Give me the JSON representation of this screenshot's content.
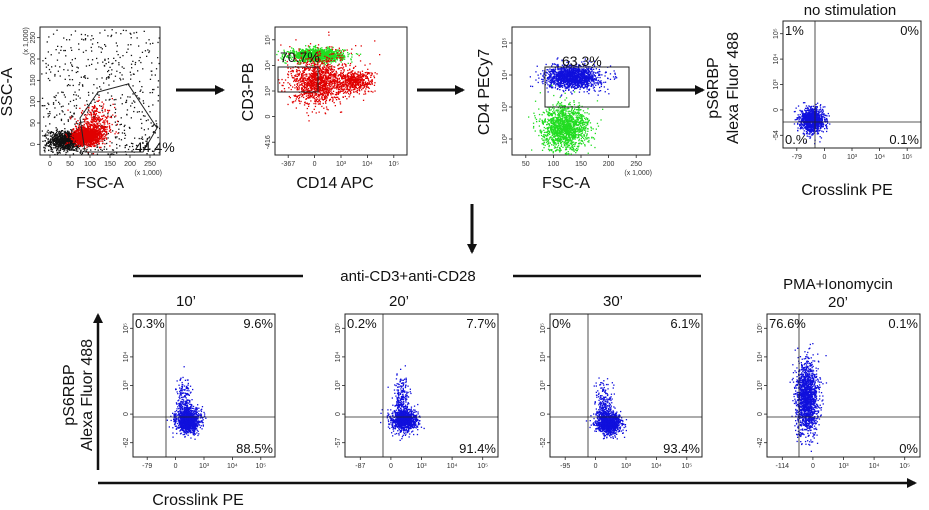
{
  "colors": {
    "black": "#111111",
    "red": "#e00000",
    "green": "#22dd22",
    "blue": "#1010dd",
    "axis": "#222222"
  },
  "chart_data": [
    {
      "id": "p1",
      "type": "scatter",
      "title": "",
      "xlabel": "FSC-A",
      "ylabel": "SSC-A",
      "xlim": [
        0,
        262
      ],
      "ylim": [
        0,
        262
      ],
      "x_ticks": [
        "0",
        "50",
        "100",
        "150",
        "200",
        "250"
      ],
      "x_scale_note": "(x 1,000)",
      "y_ticks": [
        "0",
        "50",
        "100",
        "150",
        "200",
        "250"
      ],
      "y_scale_note": "(x 1,000)",
      "gates": [
        {
          "label": "44.4%",
          "color": "black"
        }
      ],
      "populations": [
        {
          "name": "debris",
          "color": "black",
          "center": [
            55,
            30
          ],
          "spread": [
            18,
            10
          ],
          "n": 900
        },
        {
          "name": "background",
          "color": "black",
          "center": [
            130,
            130
          ],
          "spread": [
            120,
            120
          ],
          "n": 650,
          "uniform": true
        },
        {
          "name": "lymphocytes",
          "color": "red",
          "center": [
            100,
            40
          ],
          "spread": [
            14,
            8
          ],
          "n": 1400
        },
        {
          "name": "large cells",
          "color": "red",
          "center": [
            120,
            60
          ],
          "spread": [
            20,
            20
          ],
          "n": 400
        }
      ]
    },
    {
      "id": "p2",
      "type": "scatter",
      "xlabel": "CD14 APC",
      "ylabel": "CD3-PB",
      "xlim": [
        -1,
        5
      ],
      "ylim": [
        -1,
        5
      ],
      "x_ticks": [
        "-367",
        "0",
        "10³",
        "10⁴",
        "10⁵"
      ],
      "y_ticks": [
        "-416",
        "0",
        "10³",
        "10⁴",
        "10⁵"
      ],
      "gates": [
        {
          "label": "70.7%",
          "color": "black"
        }
      ],
      "populations": [
        {
          "name": "CD3+",
          "color": "green",
          "center": [
            0.9,
            3.7
          ],
          "spread": [
            0.6,
            0.15
          ],
          "n": 1300
        },
        {
          "name": "CD3- main",
          "color": "red",
          "center": [
            0.9,
            2.4
          ],
          "spread": [
            0.55,
            0.5
          ],
          "n": 1100
        },
        {
          "name": "CD14+",
          "color": "red",
          "center": [
            2.55,
            2.45
          ],
          "spread": [
            0.45,
            0.25
          ],
          "n": 500
        },
        {
          "name": "sparse",
          "color": "red",
          "center": [
            1.4,
            3.1
          ],
          "spread": [
            0.9,
            0.6
          ],
          "n": 250
        }
      ]
    },
    {
      "id": "p3",
      "type": "scatter",
      "xlabel": "FSC-A",
      "ylabel": "CD4 PECy7",
      "xlim": [
        0,
        262
      ],
      "ylim": [
        1,
        5
      ],
      "x_ticks": [
        "50",
        "100",
        "150",
        "200",
        "250"
      ],
      "x_scale_note": "(x 1,000)",
      "y_ticks": [
        "10²",
        "10³",
        "10⁴",
        "10⁵"
      ],
      "gates": [
        {
          "label": "63.3%",
          "color": "black"
        }
      ],
      "populations": [
        {
          "name": "CD4+",
          "color": "blue",
          "center": [
            115,
            3.45
          ],
          "spread": [
            25,
            0.18
          ],
          "n": 1500
        },
        {
          "name": "CD4-",
          "color": "green",
          "center": [
            100,
            1.85
          ],
          "spread": [
            22,
            0.35
          ],
          "n": 1500
        }
      ]
    },
    {
      "id": "p4",
      "type": "scatter",
      "header": "no stimulation",
      "xlabel": "Crosslink PE",
      "ylabel": [
        "pS6RBP",
        "Alexa Fluor 488"
      ],
      "xlim": [
        -1,
        5
      ],
      "ylim": [
        -1,
        5
      ],
      "x_ticks": [
        "-79",
        "0",
        "10³",
        "10⁴",
        "10⁵"
      ],
      "y_ticks": [
        "-54",
        "0",
        "10³",
        "10⁴",
        "10⁵"
      ],
      "quadrants": {
        "ul": "1%",
        "ur": "0%",
        "ll": "0.%",
        "lr": "0.1%"
      },
      "populations": [
        {
          "name": "cells",
          "color": "blue",
          "center": [
            0.25,
            0.35
          ],
          "spread": [
            0.25,
            0.28
          ],
          "n": 1200
        }
      ]
    },
    {
      "id": "p5",
      "type": "scatter",
      "header": "10’",
      "xlabel": "",
      "ylabel": "",
      "xlim": [
        -1,
        5
      ],
      "ylim": [
        -1,
        5
      ],
      "x_ticks": [
        "-79",
        "0",
        "10³",
        "10⁴",
        "10⁵"
      ],
      "y_ticks": [
        "-62",
        "0",
        "10³",
        "10⁴",
        "10⁵"
      ],
      "quadrants": {
        "ul": "0.3%",
        "ur": "9.6%",
        "ll": "",
        "lr": "88.5%"
      },
      "populations": [
        {
          "name": "main",
          "color": "blue",
          "center": [
            1.3,
            0.55
          ],
          "spread": [
            0.25,
            0.25
          ],
          "n": 1100
        },
        {
          "name": "tail",
          "color": "blue",
          "center": [
            1.15,
            1.3
          ],
          "spread": [
            0.15,
            0.55
          ],
          "n": 250
        }
      ]
    },
    {
      "id": "p6",
      "type": "scatter",
      "header": "20’",
      "xlabel": "",
      "ylabel": "",
      "xlim": [
        -1,
        5
      ],
      "ylim": [
        -1,
        5
      ],
      "x_ticks": [
        "-87",
        "0",
        "10³",
        "10⁴",
        "10⁵"
      ],
      "y_ticks": [
        "-57",
        "0",
        "10³",
        "10⁴",
        "10⁵"
      ],
      "quadrants": {
        "ul": "0.2%",
        "ur": "7.7%",
        "ll": "",
        "lr": "91.4%"
      },
      "populations": [
        {
          "name": "main",
          "color": "blue",
          "center": [
            1.3,
            0.55
          ],
          "spread": [
            0.25,
            0.22
          ],
          "n": 1100
        },
        {
          "name": "tail",
          "color": "blue",
          "center": [
            1.2,
            1.35
          ],
          "spread": [
            0.15,
            0.6
          ],
          "n": 260
        }
      ]
    },
    {
      "id": "p7",
      "type": "scatter",
      "header": "30’",
      "xlabel": "",
      "ylabel": "",
      "xlim": [
        -1,
        5
      ],
      "ylim": [
        -1,
        5
      ],
      "x_ticks": [
        "-95",
        "0",
        "10³",
        "10⁴",
        "10⁵"
      ],
      "y_ticks": [
        "-52",
        "0",
        "10³",
        "10⁴",
        "10⁵"
      ],
      "quadrants": {
        "ul": "0%",
        "ur": "6.1%",
        "ll": "",
        "lr": "93.4%"
      },
      "populations": [
        {
          "name": "main",
          "color": "blue",
          "center": [
            1.3,
            0.45
          ],
          "spread": [
            0.25,
            0.22
          ],
          "n": 1100
        },
        {
          "name": "tail",
          "color": "blue",
          "center": [
            1.1,
            1.2
          ],
          "spread": [
            0.15,
            0.5
          ],
          "n": 220
        }
      ]
    },
    {
      "id": "p8",
      "type": "scatter",
      "header": [
        "PMA+Ionomycin",
        "20’"
      ],
      "xlabel": "",
      "ylabel": "",
      "xlim": [
        -1,
        5
      ],
      "ylim": [
        -1,
        5
      ],
      "x_ticks": [
        "-114",
        "0",
        "10³",
        "10⁴",
        "10⁵"
      ],
      "y_ticks": [
        "-42",
        "0",
        "10³",
        "10⁴",
        "10⁵"
      ],
      "quadrants": {
        "ul": "76.6%",
        "ur": "0.1%",
        "ll": "",
        "lr": "0%"
      },
      "populations": [
        {
          "name": "cells",
          "color": "blue",
          "center": [
            0.55,
            1.5
          ],
          "spread": [
            0.22,
            0.75
          ],
          "n": 1500
        }
      ]
    }
  ],
  "labels": {
    "group_header": "anti-CD3+anti-CD28",
    "bottom_xlabel": "Crosslink PE",
    "bottom_ylabel_1": "pS6RBP",
    "bottom_ylabel_2": "Alexa Fluor 488"
  }
}
